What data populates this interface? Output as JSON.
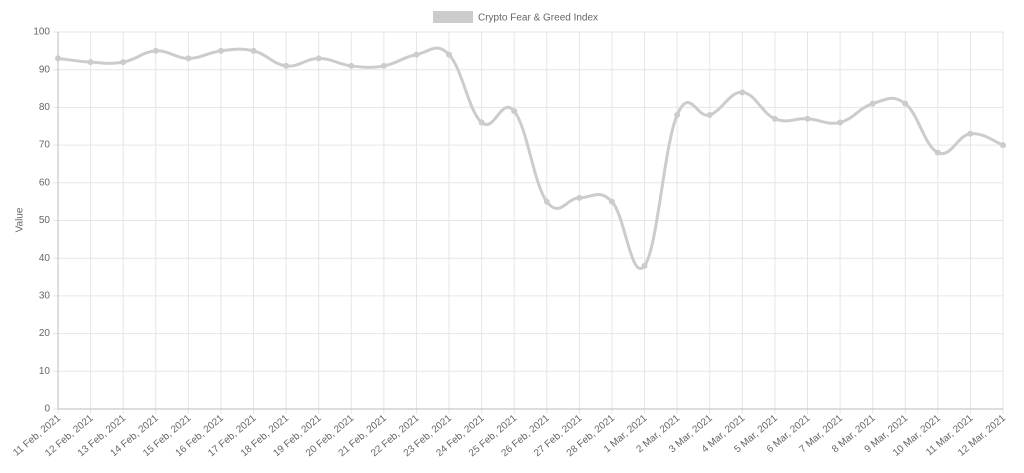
{
  "chart_data": {
    "type": "line",
    "legend": "Crypto Fear & Greed Index",
    "y_label": "Value",
    "categories": [
      "11 Feb, 2021",
      "12 Feb, 2021",
      "13 Feb, 2021",
      "14 Feb, 2021",
      "15 Feb, 2021",
      "16 Feb, 2021",
      "17 Feb, 2021",
      "18 Feb, 2021",
      "19 Feb, 2021",
      "20 Feb, 2021",
      "21 Feb, 2021",
      "22 Feb, 2021",
      "23 Feb, 2021",
      "24 Feb, 2021",
      "25 Feb, 2021",
      "26 Feb, 2021",
      "27 Feb, 2021",
      "28 Feb, 2021",
      "1 Mar, 2021",
      "2 Mar, 2021",
      "3 Mar, 2021",
      "4 Mar, 2021",
      "5 Mar, 2021",
      "6 Mar, 2021",
      "7 Mar, 2021",
      "8 Mar, 2021",
      "9 Mar, 2021",
      "10 Mar, 2021",
      "11 Mar, 2021",
      "12 Mar, 2021"
    ],
    "series": [
      {
        "name": "Crypto Fear & Greed Index",
        "color": "#cccccc",
        "values": [
          93,
          92,
          92,
          95,
          93,
          95,
          95,
          91,
          93,
          91,
          91,
          94,
          94,
          76,
          79,
          55,
          56,
          55,
          38,
          78,
          78,
          84,
          77,
          77,
          76,
          81,
          81,
          68,
          73,
          70
        ]
      }
    ],
    "ylim": [
      0,
      100
    ],
    "yticks": [
      0,
      10,
      20,
      30,
      40,
      50,
      60,
      70,
      80,
      90,
      100
    ],
    "grid": true
  }
}
